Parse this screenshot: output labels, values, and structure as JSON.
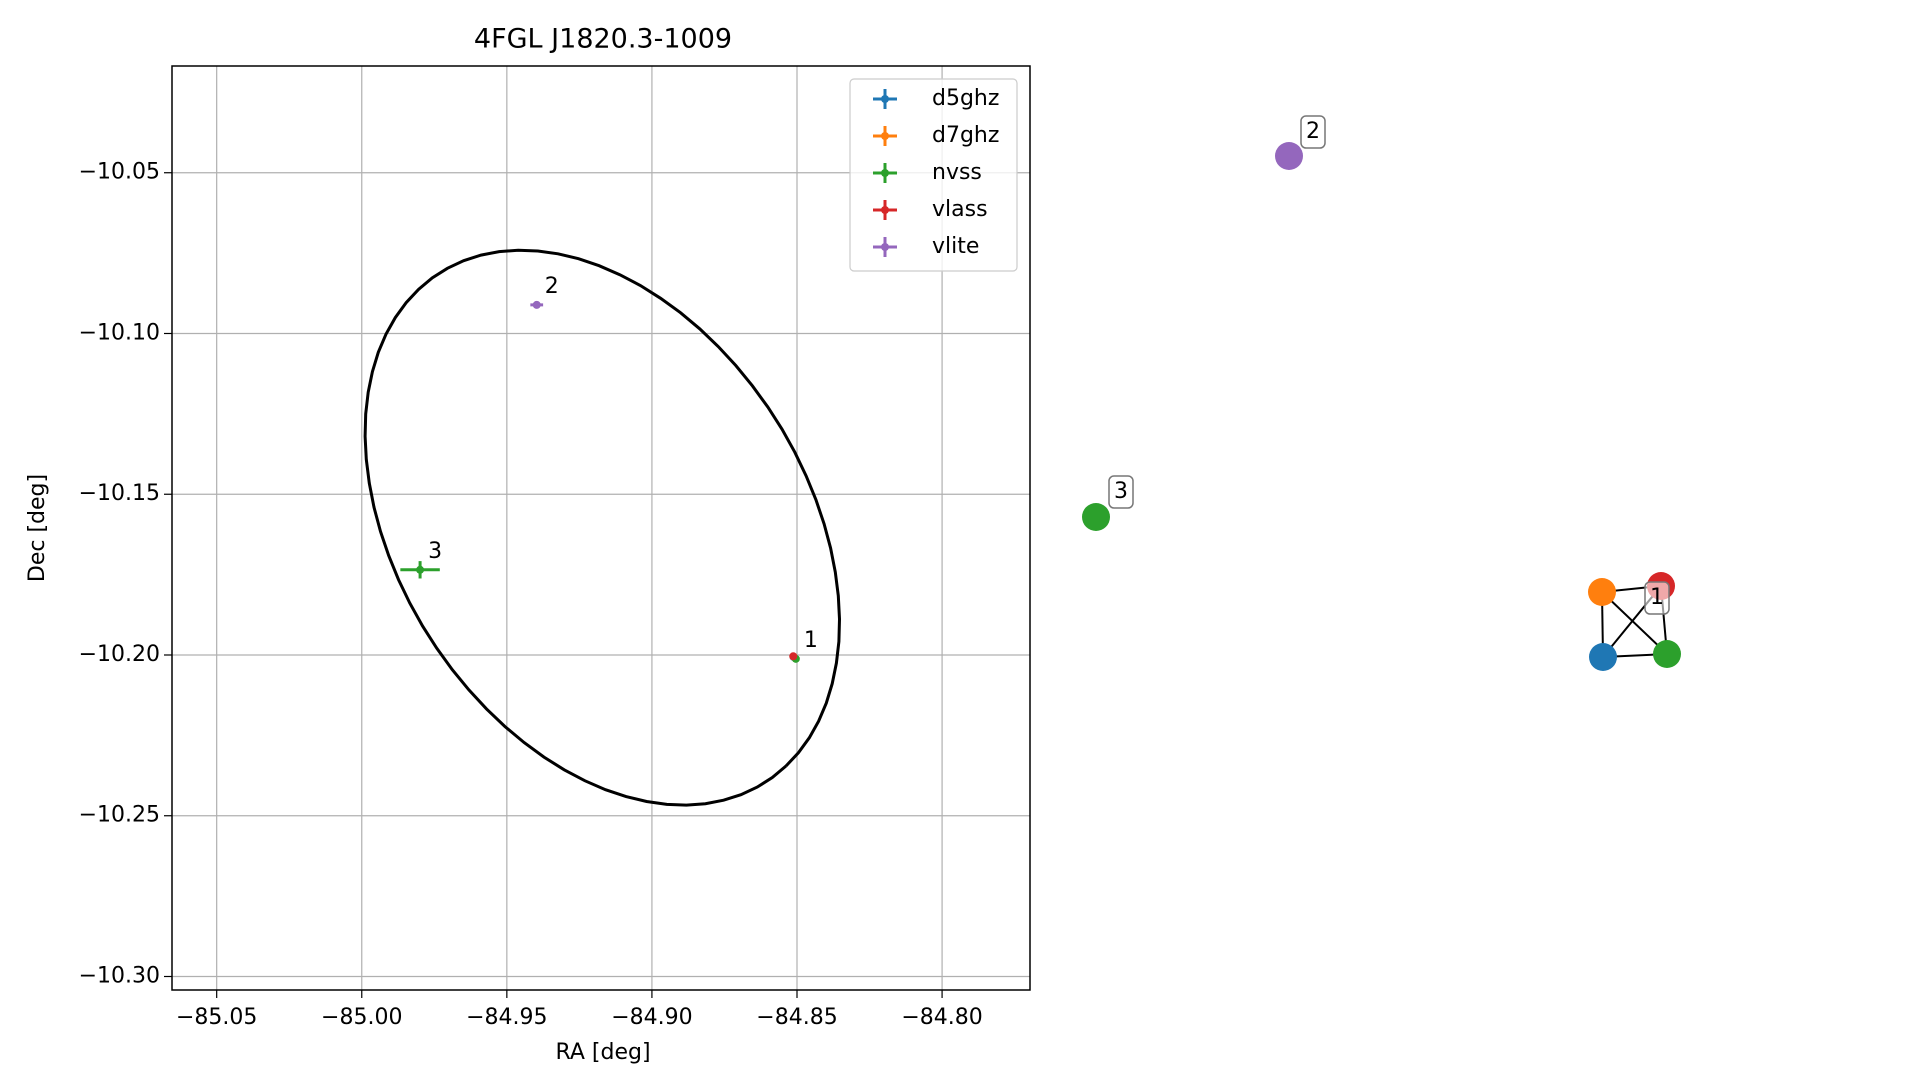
{
  "chart_data": {
    "type": "scatter",
    "title": "4FGL J1820.3-1009",
    "xlabel": "RA [deg]",
    "ylabel": "Dec [deg]",
    "xlim": [
      -85.0654,
      -84.7697
    ],
    "ylim": [
      -10.3042,
      -10.0168
    ],
    "xticks": [
      {
        "value": -85.05,
        "label": "−85.05"
      },
      {
        "value": -85.0,
        "label": "−85.00"
      },
      {
        "value": -84.95,
        "label": "−84.95"
      },
      {
        "value": -84.9,
        "label": "−84.90"
      },
      {
        "value": -84.85,
        "label": "−84.85"
      },
      {
        "value": -84.8,
        "label": "−84.80"
      }
    ],
    "yticks": [
      {
        "value": -10.05,
        "label": "−10.05"
      },
      {
        "value": -10.1,
        "label": "−10.10"
      },
      {
        "value": -10.15,
        "label": "−10.15"
      },
      {
        "value": -10.2,
        "label": "−10.20"
      },
      {
        "value": -10.25,
        "label": "−10.25"
      },
      {
        "value": -10.3,
        "label": "−10.30"
      }
    ],
    "grid": true,
    "legend": "upper right",
    "series": [
      {
        "name": "d5ghz",
        "color": "#1f77b4",
        "x": [
          -84.8512
        ],
        "values": [
          -10.2006
        ],
        "xerr": [
          0.0005
        ],
        "yerr": [
          0.0005
        ]
      },
      {
        "name": "d7ghz",
        "color": "#ff7f0e",
        "x": [
          -84.8512
        ],
        "values": [
          -10.2005
        ],
        "xerr": [
          0.0005
        ],
        "yerr": [
          0.0005
        ]
      },
      {
        "name": "nvss",
        "color": "#2ca02c",
        "x": [
          -84.9799,
          -84.8504
        ],
        "values": [
          -10.1735,
          -10.2012
        ],
        "xerr": [
          0.0068,
          0.0008
        ],
        "yerr": [
          0.0027,
          0.0008
        ]
      },
      {
        "name": "vlass",
        "color": "#d62728",
        "x": [
          -84.8513
        ],
        "values": [
          -10.2004
        ],
        "xerr": [
          0.0006
        ],
        "yerr": [
          0.0006
        ]
      },
      {
        "name": "vlite",
        "color": "#9467bd",
        "x": [
          -84.9397
        ],
        "values": [
          -10.0911
        ],
        "xerr": [
          0.0022
        ],
        "yerr": [
          0.0011
        ]
      }
    ],
    "annotations": [
      {
        "text": "1",
        "x": -84.8504,
        "y": -10.2012
      },
      {
        "text": "2",
        "x": -84.9397,
        "y": -10.0911
      },
      {
        "text": "3",
        "x": -84.9799,
        "y": -10.1735
      }
    ],
    "ellipse": {
      "center": [
        -84.9171,
        -10.1604
      ],
      "width": 0.195,
      "height": 0.136,
      "angle": -49.5,
      "color": "#000000"
    }
  },
  "graph": {
    "nodes": [
      {
        "survey": "d5ghz",
        "color": "#1f77b4"
      },
      {
        "survey": "d7ghz",
        "color": "#ff7f0e"
      },
      {
        "survey": "nvss",
        "color": "#2ca02c"
      },
      {
        "survey": "vlass",
        "color": "#d62728"
      },
      {
        "survey": "vlite",
        "color": "#9467bd"
      },
      {
        "survey": "nvss",
        "color": "#2ca02c"
      }
    ],
    "edges": [
      [
        1,
        3
      ],
      [
        1,
        0
      ],
      [
        1,
        2
      ],
      [
        0,
        3
      ],
      [
        0,
        2
      ],
      [
        3,
        2
      ]
    ],
    "labels": [
      "1",
      "2",
      "3"
    ]
  }
}
